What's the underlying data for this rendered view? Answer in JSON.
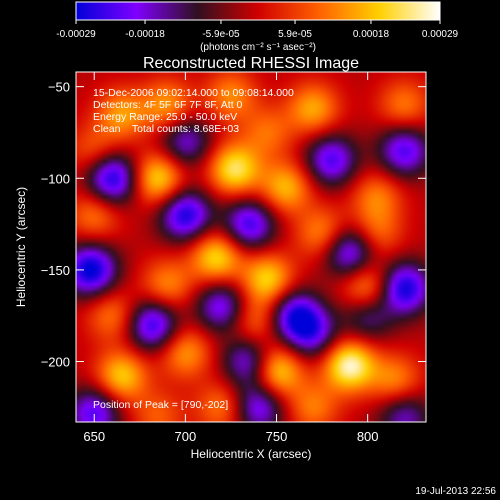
{
  "chart_data": {
    "type": "heatmap",
    "title": "Reconstructed RHESSI Image",
    "xlabel": "Heliocentric X (arcsec)",
    "ylabel": "Heliocentric Y (arcsec)",
    "xlim": [
      640,
      832
    ],
    "ylim": [
      -233,
      -42
    ],
    "xticks": [
      650,
      700,
      750,
      800
    ],
    "yticks": [
      -50,
      -100,
      -150,
      -200
    ],
    "colorbar": {
      "ticks": [
        "-0.00029",
        "-0.00018",
        "-5.9e-05",
        "5.9e-05",
        "0.00018",
        "0.00029"
      ],
      "tick_values": [
        -0.00029,
        -0.00018,
        -5.9e-05,
        5.9e-05,
        0.00018,
        0.00029
      ],
      "range": [
        -0.00029,
        0.00029
      ],
      "units": "(photons cm⁻² s⁻¹ asec⁻²)",
      "colors": [
        "#0000d8",
        "#8000ff",
        "#301020",
        "#d00000",
        "#ff6000",
        "#ffd000",
        "#ffffff"
      ]
    },
    "annotations": [
      "15-Dec-2006 09:02:14.000 to 09:08:14.000",
      "Detectors: 4F 5F 6F 7F 8F, Att 0",
      "Energy Range: 25.0 - 50.0 keV",
      "Clean    Total counts: 8.68E+03"
    ],
    "peak_label": "Position of Peak = [790,-202]",
    "peak": [
      790,
      -202
    ],
    "sources": [
      {
        "x": 790,
        "y": -202,
        "v": 1.0
      },
      {
        "x": 727,
        "y": -95,
        "v": 0.85
      },
      {
        "x": 685,
        "y": -100,
        "v": 0.78
      },
      {
        "x": 717,
        "y": -143,
        "v": 0.78
      },
      {
        "x": 745,
        "y": -155,
        "v": 0.75
      },
      {
        "x": 750,
        "y": -205,
        "v": 0.82
      },
      {
        "x": 665,
        "y": -208,
        "v": 0.72
      },
      {
        "x": 755,
        "y": -105,
        "v": 0.65
      },
      {
        "x": 770,
        "y": -62,
        "v": 0.6
      },
      {
        "x": 690,
        "y": -60,
        "v": 0.55
      },
      {
        "x": 725,
        "y": -55,
        "v": 0.5
      },
      {
        "x": 805,
        "y": -110,
        "v": 0.45
      },
      {
        "x": 800,
        "y": -160,
        "v": 0.62
      },
      {
        "x": 775,
        "y": -130,
        "v": 0.52
      },
      {
        "x": 690,
        "y": -158,
        "v": 0.5
      },
      {
        "x": 650,
        "y": -120,
        "v": 0.45
      },
      {
        "x": 660,
        "y": -175,
        "v": 0.45
      },
      {
        "x": 700,
        "y": -195,
        "v": 0.55
      },
      {
        "x": 770,
        "y": -225,
        "v": 0.45
      },
      {
        "x": 720,
        "y": -225,
        "v": 0.45
      },
      {
        "x": 815,
        "y": -210,
        "v": 0.5
      },
      {
        "x": 820,
        "y": -60,
        "v": 0.45
      },
      {
        "x": 745,
        "y": -75,
        "v": 0.4
      },
      {
        "x": 805,
        "y": -130,
        "v": 0.4
      },
      {
        "x": 738,
        "y": -178,
        "v": 0.45
      },
      {
        "x": 665,
        "y": -65,
        "v": 0.55
      },
      {
        "x": 650,
        "y": -85,
        "v": 0.35
      },
      {
        "x": 685,
        "y": -230,
        "v": 0.35
      },
      {
        "x": 700,
        "y": -120,
        "v": -0.9
      },
      {
        "x": 660,
        "y": -100,
        "v": -0.95
      },
      {
        "x": 735,
        "y": -125,
        "v": -0.8
      },
      {
        "x": 760,
        "y": -175,
        "v": -0.85
      },
      {
        "x": 682,
        "y": -180,
        "v": -0.85
      },
      {
        "x": 648,
        "y": -150,
        "v": -1.0
      },
      {
        "x": 720,
        "y": -170,
        "v": -0.7
      },
      {
        "x": 780,
        "y": -90,
        "v": -0.75
      },
      {
        "x": 820,
        "y": -160,
        "v": -0.95
      },
      {
        "x": 790,
        "y": -140,
        "v": -0.8
      },
      {
        "x": 820,
        "y": -85,
        "v": -0.75
      },
      {
        "x": 770,
        "y": -185,
        "v": -0.6
      },
      {
        "x": 700,
        "y": -80,
        "v": -0.6
      },
      {
        "x": 740,
        "y": -225,
        "v": -0.7
      },
      {
        "x": 650,
        "y": -228,
        "v": -0.75
      },
      {
        "x": 820,
        "y": -230,
        "v": -0.55
      },
      {
        "x": 735,
        "y": -200,
        "v": -0.7
      },
      {
        "x": 800,
        "y": -175,
        "v": -0.5
      }
    ]
  },
  "footer": {
    "timestamp": "19-Jul-2013 22:56"
  }
}
